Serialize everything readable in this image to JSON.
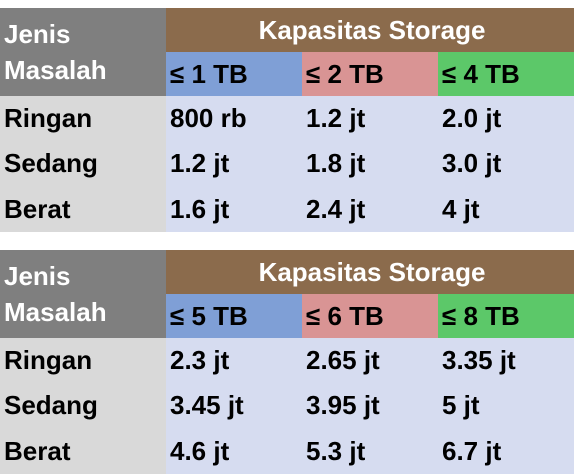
{
  "tables": [
    {
      "row_header": "Jenis Masalah",
      "group_header": "Kapasitas Storage",
      "columns": [
        "≤ 1 TB",
        "≤ 2 TB",
        "≤ 4 TB"
      ],
      "rows": [
        [
          "Ringan",
          "800 rb",
          "1.2 jt",
          "2.0 jt"
        ],
        [
          "Sedang",
          "1.2 jt",
          "1.8 jt",
          "3.0 jt"
        ],
        [
          "Berat",
          "1.6 jt",
          "2.4 jt",
          "4 jt"
        ]
      ]
    },
    {
      "row_header": "Jenis Masalah",
      "group_header": "Kapasitas Storage",
      "columns": [
        "≤ 5 TB",
        "≤ 6 TB",
        "≤ 8 TB"
      ],
      "rows": [
        [
          "Ringan",
          "2.3 jt",
          "2.65 jt",
          "3.35 jt"
        ],
        [
          "Sedang",
          "3.45 jt",
          "3.95 jt",
          "5 jt"
        ],
        [
          "Berat",
          "4.6 jt",
          "5.3 jt",
          "6.7 jt"
        ]
      ]
    }
  ]
}
